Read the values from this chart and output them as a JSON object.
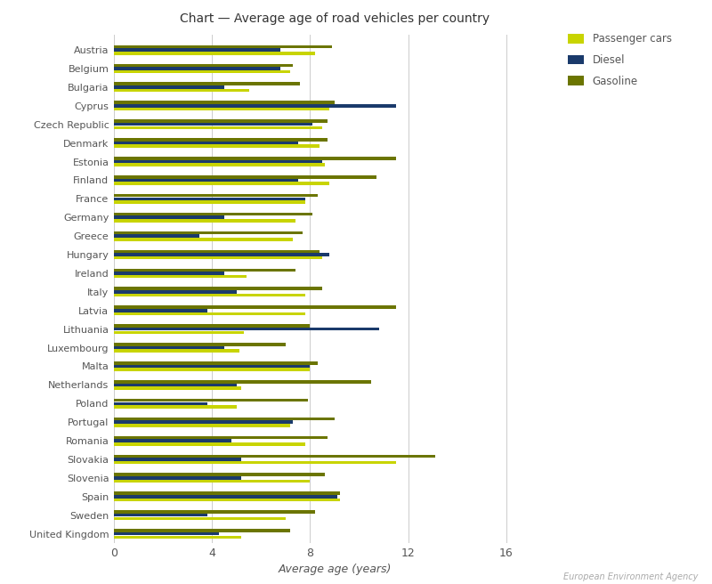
{
  "title": "Chart — Average age of road vehicles per country",
  "xlabel": "Average age (years)",
  "countries": [
    "Austria",
    "Belgium",
    "Bulgaria",
    "Cyprus",
    "Czech Republic",
    "Denmark",
    "Estonia",
    "Finland",
    "France",
    "Germany",
    "Greece",
    "Hungary",
    "Ireland",
    "Italy",
    "Latvia",
    "Lithuania",
    "Luxembourg",
    "Malta",
    "Netherlands",
    "Poland",
    "Portugal",
    "Romania",
    "Slovakia",
    "Slovenia",
    "Spain",
    "Sweden",
    "United Kingdom"
  ],
  "passenger_cars": [
    8.2,
    7.2,
    5.5,
    8.8,
    8.5,
    8.4,
    8.6,
    8.8,
    7.8,
    7.4,
    7.3,
    8.5,
    5.4,
    7.8,
    7.8,
    5.3,
    5.1,
    8.0,
    5.2,
    5.0,
    7.2,
    7.8,
    11.5,
    8.0,
    9.2,
    7.0,
    5.2
  ],
  "diesel": [
    6.8,
    6.8,
    4.5,
    11.5,
    8.1,
    7.5,
    8.5,
    7.5,
    7.8,
    4.5,
    3.5,
    8.8,
    4.5,
    5.0,
    3.8,
    10.8,
    4.5,
    8.0,
    5.0,
    3.8,
    7.3,
    4.8,
    5.2,
    5.2,
    9.1,
    3.8,
    4.3
  ],
  "gasoline": [
    8.9,
    7.3,
    7.6,
    9.0,
    8.7,
    8.7,
    11.5,
    10.7,
    8.3,
    8.1,
    7.7,
    8.4,
    7.4,
    8.5,
    11.5,
    8.0,
    7.0,
    8.3,
    10.5,
    7.9,
    9.0,
    8.7,
    13.1,
    8.6,
    9.2,
    8.2,
    7.2
  ],
  "color_passenger": "#c8d400",
  "color_diesel": "#1a3a6b",
  "color_gasoline": "#6b7500",
  "background_color": "#ffffff",
  "xlim": [
    0,
    18
  ],
  "xticks": [
    0,
    4,
    8,
    12,
    16
  ],
  "legend_labels": [
    "Passenger cars",
    "Diesel",
    "Gasoline"
  ],
  "footer_text": "European Environment Agency"
}
